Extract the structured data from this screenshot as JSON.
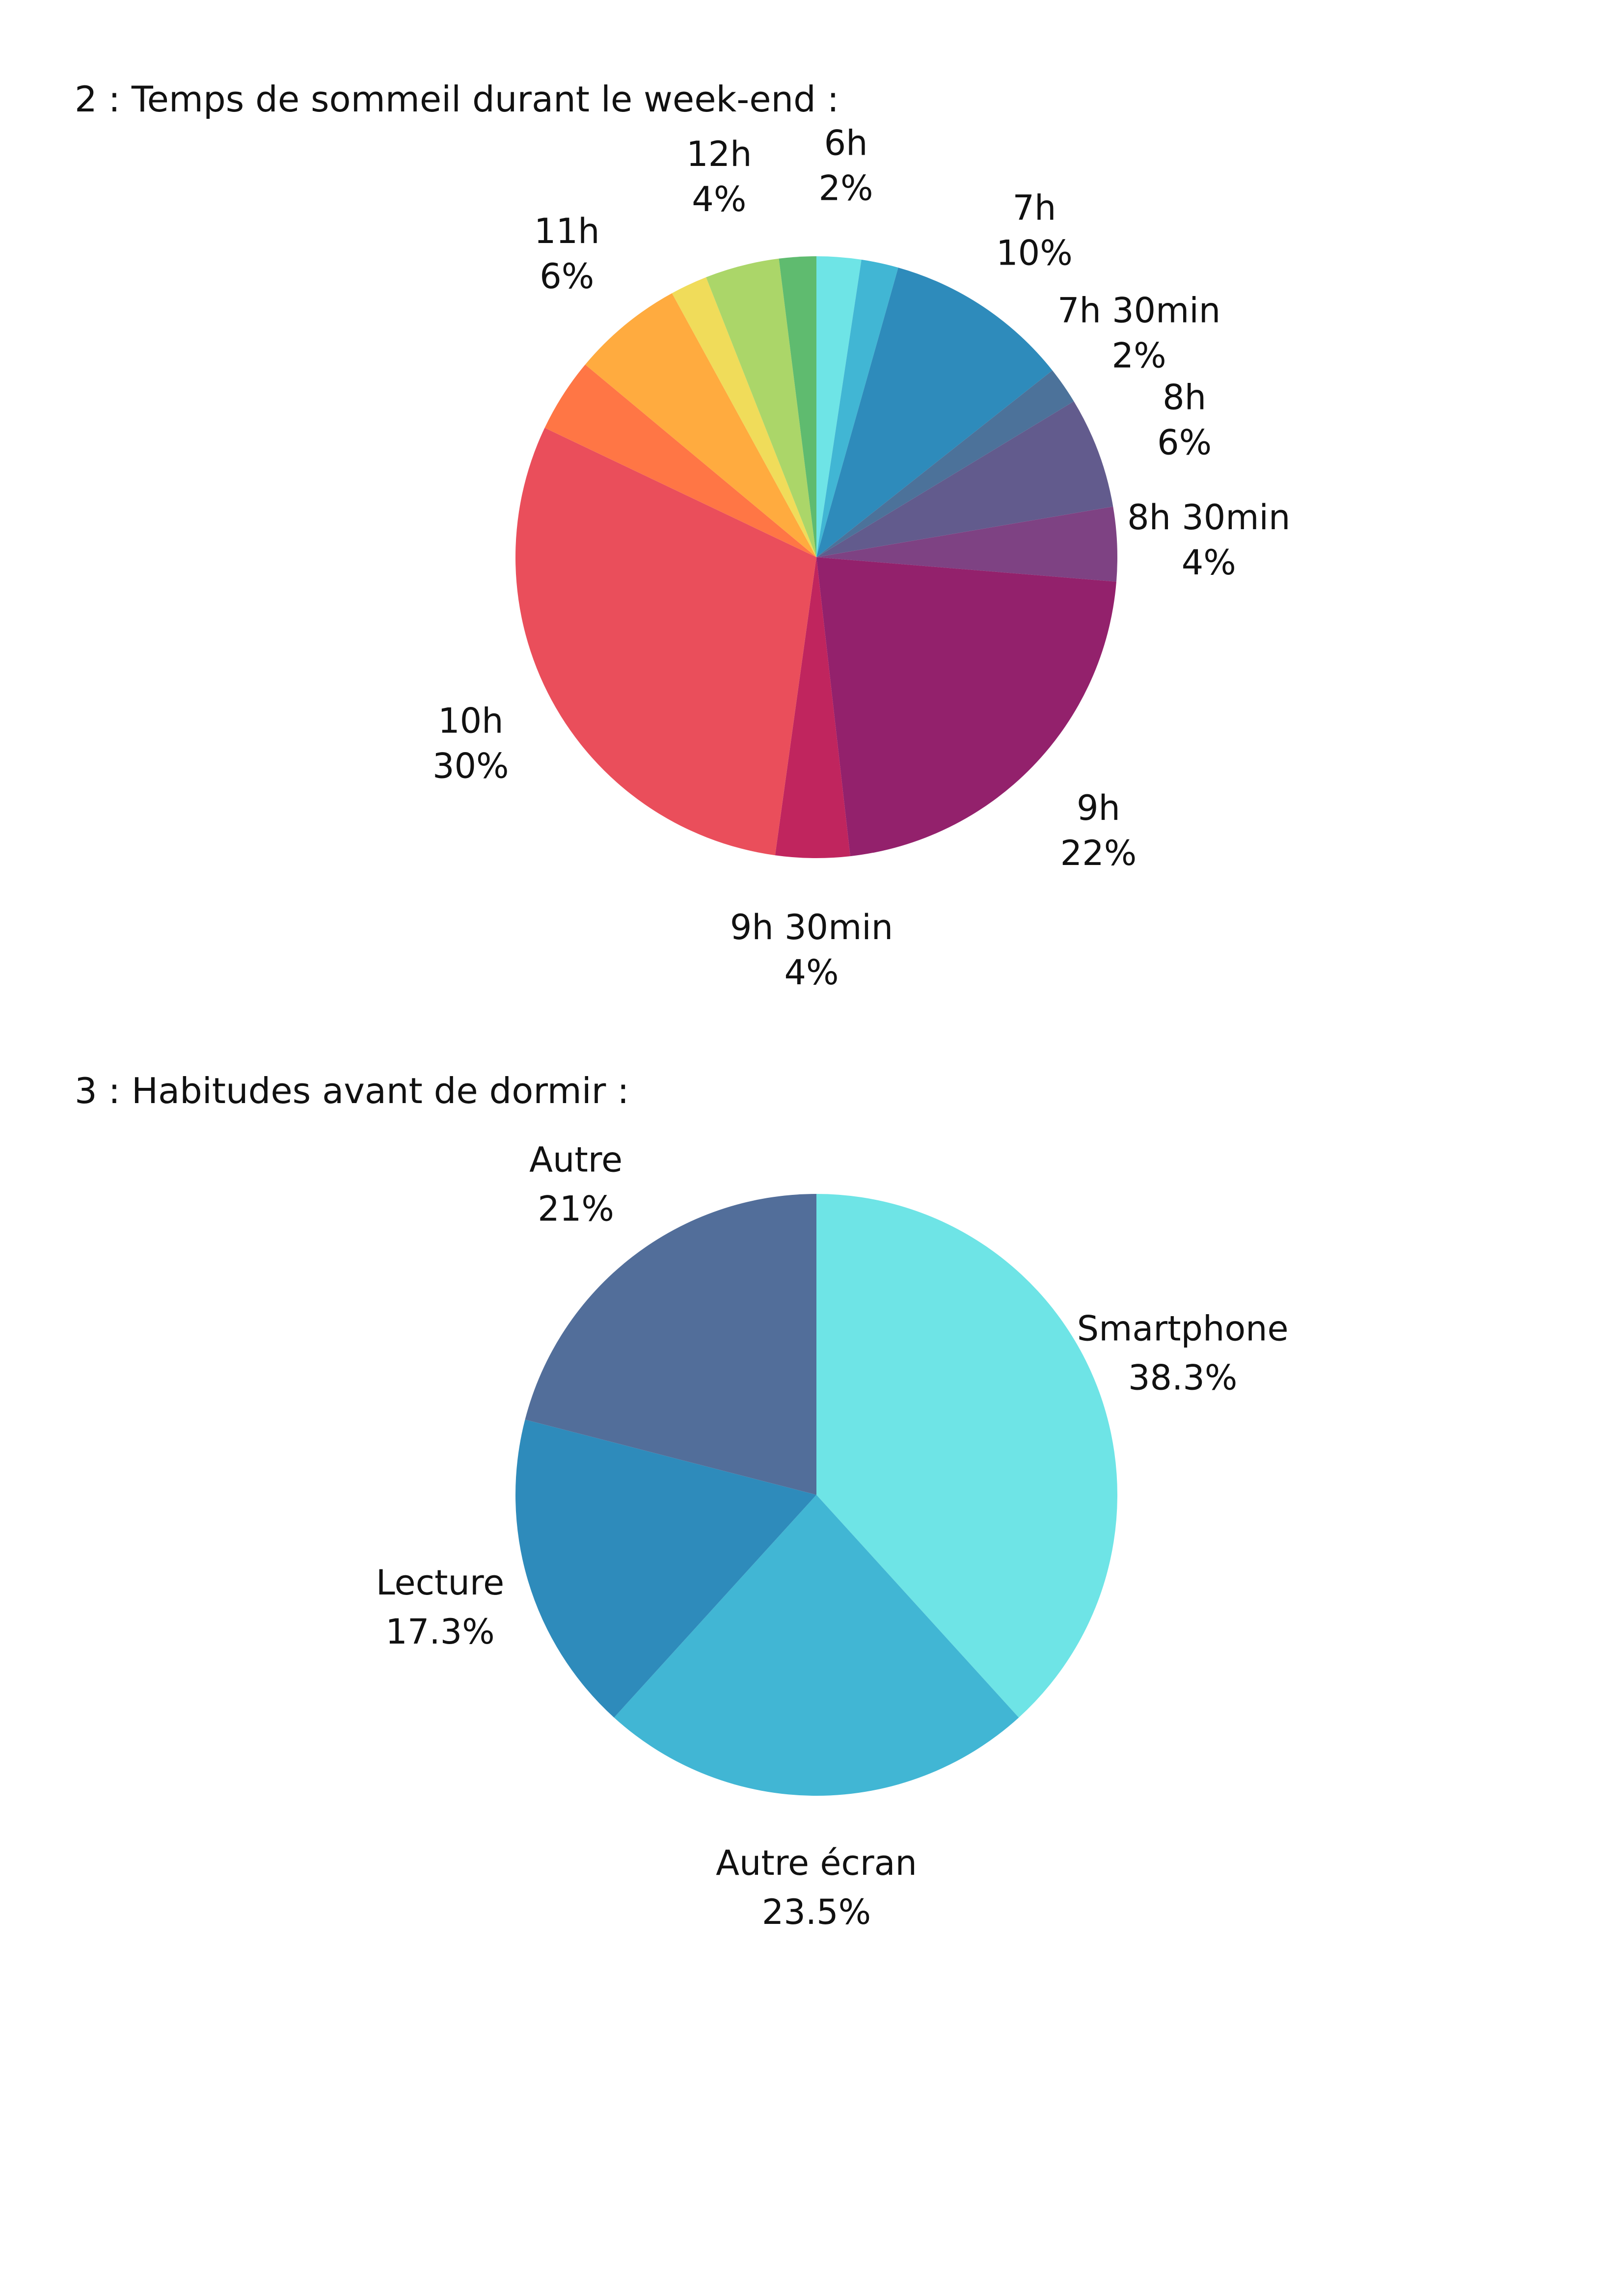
{
  "chart_data": [
    {
      "type": "pie",
      "title": "2 : Temps de sommeil durant le week-end :",
      "slices": [
        {
          "label": "6h",
          "value_label": "2%",
          "value": 2.4,
          "color": "#6ee4e6"
        },
        {
          "label": "",
          "value_label": "",
          "value": 2.0,
          "color": "#41b6d4"
        },
        {
          "label": "7h",
          "value_label": "10%",
          "value": 10,
          "color": "#2e8bbb"
        },
        {
          "label": "7h 30min",
          "value_label": "2%",
          "value": 2,
          "color": "#4c729a"
        },
        {
          "label": "8h",
          "value_label": "6%",
          "value": 6,
          "color": "#625b8d"
        },
        {
          "label": "8h 30min",
          "value_label": "4%",
          "value": 4,
          "color": "#7e4283"
        },
        {
          "label": "9h",
          "value_label": "22%",
          "value": 22,
          "color": "#93216c"
        },
        {
          "label": "9h 30min",
          "value_label": "4%",
          "value": 4,
          "color": "#c0255e"
        },
        {
          "label": "10h",
          "value_label": "30%",
          "value": 30,
          "color": "#ea4e5b"
        },
        {
          "label": "",
          "value_label": "",
          "value": 4,
          "color": "#ff7645"
        },
        {
          "label": "11h",
          "value_label": "6%",
          "value": 6,
          "color": "#ffab3f"
        },
        {
          "label": "",
          "value_label": "",
          "value": 2,
          "color": "#f0dc5a"
        },
        {
          "label": "12h",
          "value_label": "4%",
          "value": 4,
          "color": "#abd669"
        },
        {
          "label": "",
          "value_label": "",
          "value": 2,
          "color": "#5fbb6f"
        }
      ]
    },
    {
      "type": "pie",
      "title": "3 : Habitudes avant de dormir :",
      "slices": [
        {
          "label": "Smartphone",
          "value_label": "38.3%",
          "value": 38.3,
          "color": "#6ee4e6"
        },
        {
          "label": "Autre écran",
          "value_label": "23.5%",
          "value": 23.5,
          "color": "#41b6d4"
        },
        {
          "label": "Lecture",
          "value_label": "17.3%",
          "value": 17.3,
          "color": "#2e8bbb"
        },
        {
          "label": "Autre",
          "value_label": "21%",
          "value": 21,
          "color": "#526e9a"
        }
      ]
    }
  ]
}
